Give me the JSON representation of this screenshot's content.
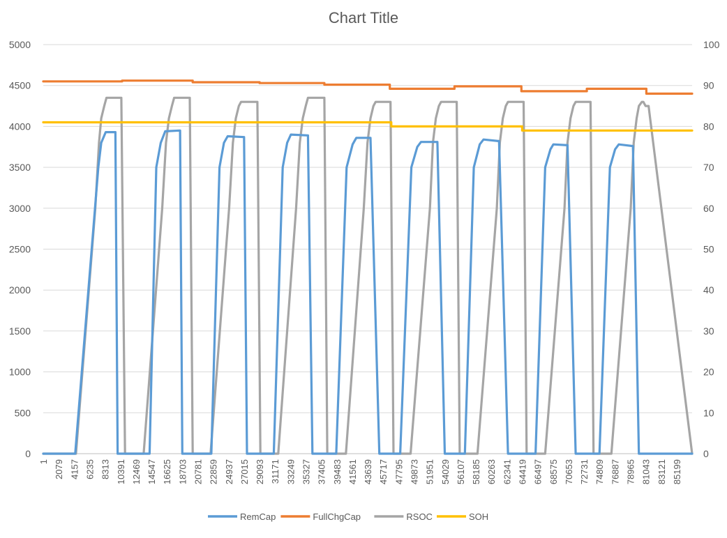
{
  "chart_data": {
    "type": "line",
    "title": "Chart Title",
    "xlabel": "",
    "ylabel": "",
    "y2label": "",
    "ylim": [
      0,
      5000
    ],
    "y2lim": [
      0,
      100
    ],
    "xlim": [
      1,
      87257
    ],
    "y_ticks": [
      "0",
      "500",
      "1000",
      "1500",
      "2000",
      "2500",
      "3000",
      "3500",
      "4000",
      "4500",
      "5000"
    ],
    "y2_ticks": [
      "0",
      "10",
      "20",
      "30",
      "40",
      "50",
      "60",
      "70",
      "80",
      "90",
      "100"
    ],
    "x_ticks": [
      "1",
      "2079",
      "4157",
      "6235",
      "8313",
      "10391",
      "12469",
      "14547",
      "16625",
      "18703",
      "20781",
      "22859",
      "24937",
      "27015",
      "29093",
      "31171",
      "33249",
      "35327",
      "37405",
      "39483",
      "41561",
      "43639",
      "45717",
      "47795",
      "49873",
      "51951",
      "54029",
      "56107",
      "58185",
      "60263",
      "62341",
      "64419",
      "66497",
      "68575",
      "70653",
      "72731",
      "74809",
      "76887",
      "78965",
      "81043",
      "83121",
      "85199"
    ],
    "grid": true,
    "legend_position": "bottom",
    "series": [
      {
        "name": "RemCap",
        "axis": "left",
        "color": "#5b9bd5",
        "x": [
          1,
          4000,
          4300,
          7400,
          7800,
          8400,
          9700,
          10000,
          10500,
          11000,
          14300,
          15200,
          15800,
          16400,
          18400,
          18700,
          19200,
          19800,
          22600,
          23700,
          24300,
          24800,
          27000,
          27400,
          27800,
          28400,
          31000,
          32200,
          32800,
          33300,
          35600,
          36200,
          36700,
          37200,
          39400,
          40800,
          41600,
          42100,
          44000,
          45200,
          45800,
          46400,
          48000,
          49500,
          50300,
          50800,
          53000,
          54000,
          54700,
          55400,
          56700,
          57900,
          58700,
          59200,
          61300,
          62500,
          63300,
          63900,
          66200,
          67500,
          68200,
          68600,
          70500,
          71600,
          72000,
          72500,
          74800,
          76200,
          76900,
          77400,
          79300,
          80100,
          80400,
          80700,
          87257
        ],
        "y": [
          0,
          0,
          0,
          3500,
          3800,
          3930,
          3930,
          0,
          0,
          0,
          0,
          3500,
          3800,
          3940,
          3950,
          0,
          0,
          0,
          0,
          3500,
          3800,
          3880,
          3870,
          0,
          0,
          0,
          0,
          3500,
          3800,
          3900,
          3890,
          0,
          0,
          0,
          0,
          3500,
          3780,
          3860,
          3860,
          0,
          0,
          0,
          0,
          3500,
          3750,
          3810,
          3810,
          0,
          0,
          0,
          0,
          3500,
          3780,
          3840,
          3820,
          0,
          0,
          0,
          0,
          3500,
          3720,
          3780,
          3770,
          0,
          0,
          0,
          0,
          3500,
          3720,
          3780,
          3760,
          0,
          0,
          0,
          0
        ]
      },
      {
        "name": "FullChgCap",
        "axis": "left",
        "color": "#ed7d31",
        "x": [
          1,
          10600,
          10600,
          20100,
          20100,
          29100,
          29100,
          37800,
          37800,
          46600,
          46600,
          55300,
          55300,
          64300,
          64300,
          73100,
          73100,
          81100,
          81100,
          87257
        ],
        "y": [
          4550,
          4550,
          4560,
          4560,
          4540,
          4540,
          4530,
          4530,
          4510,
          4510,
          4460,
          4460,
          4490,
          4490,
          4430,
          4430,
          4460,
          4460,
          4400,
          4400
        ]
      },
      {
        "name": "RSOC",
        "axis": "right",
        "color": "#a5a5a5",
        "x": [
          1,
          4200,
          4400,
          7000,
          7500,
          7800,
          8200,
          8500,
          10200,
          10500,
          11000,
          11500,
          13200,
          13500,
          16000,
          16500,
          16900,
          17300,
          17600,
          19400,
          19700,
          20100,
          20500,
          22200,
          22500,
          25000,
          25500,
          25900,
          26300,
          26600,
          28500,
          28800,
          29200,
          29500,
          31300,
          31600,
          34000,
          34500,
          34900,
          35300,
          35600,
          37400,
          37800,
          38200,
          38500,
          40400,
          40700,
          43100,
          43600,
          44000,
          44400,
          44700,
          46400,
          46700,
          47100,
          47500,
          49100,
          49400,
          52000,
          52400,
          52800,
          53200,
          53500,
          55300,
          55600,
          56000,
          56400,
          58100,
          58400,
          61000,
          61400,
          61800,
          62200,
          62500,
          64300,
          64600,
          65000,
          65400,
          67200,
          67500,
          70100,
          70500,
          70900,
          71300,
          71600,
          73300,
          73600,
          74000,
          74400,
          76100,
          76400,
          79000,
          79400,
          79800,
          80100,
          80500,
          80700,
          81000,
          81400,
          87257
        ],
        "y": [
          0,
          0,
          0,
          60,
          76,
          82,
          85,
          87,
          87,
          87,
          0,
          0,
          0,
          0,
          60,
          76,
          82,
          85,
          87,
          87,
          87,
          0,
          0,
          0,
          0,
          60,
          76,
          82,
          85,
          86,
          86,
          86,
          0,
          0,
          0,
          0,
          60,
          76,
          82,
          85,
          87,
          87,
          87,
          0,
          0,
          0,
          0,
          60,
          76,
          82,
          85,
          86,
          86,
          86,
          0,
          0,
          0,
          0,
          60,
          76,
          82,
          85,
          86,
          86,
          86,
          0,
          0,
          0,
          0,
          60,
          76,
          82,
          85,
          86,
          86,
          86,
          0,
          0,
          0,
          0,
          60,
          76,
          82,
          85,
          86,
          86,
          86,
          0,
          0,
          0,
          0,
          60,
          76,
          82,
          85,
          86,
          86,
          85,
          85,
          0
        ]
      },
      {
        "name": "SOH",
        "axis": "right",
        "color": "#ffc000",
        "x": [
          1,
          46800,
          46800,
          64400,
          64400,
          87257
        ],
        "y": [
          81,
          81,
          80,
          80,
          79,
          79
        ]
      }
    ]
  }
}
